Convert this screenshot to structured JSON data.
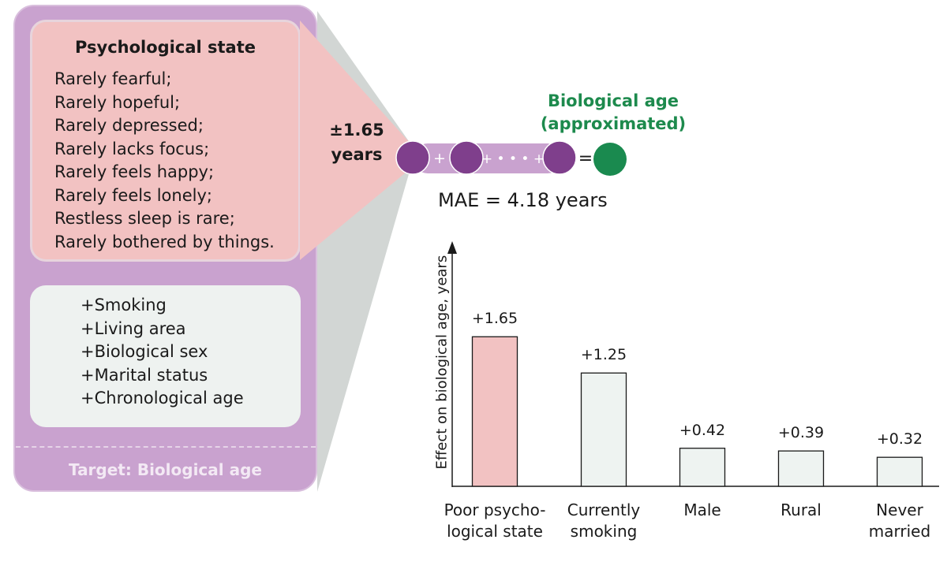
{
  "psych_box": {
    "title": "Psychological state",
    "items": [
      "Rarely fearful;",
      "Rarely hopeful;",
      "Rarely depressed;",
      "Rarely lacks focus;",
      "Rarely feels happy;",
      "Rarely feels lonely;",
      "Restless sleep is rare;",
      "Rarely bothered by things."
    ]
  },
  "covariates": [
    "+Smoking",
    "+Living area",
    "+Biological sex",
    "+Marital status",
    "+Chronological age"
  ],
  "target_label": "Target: Biological age",
  "effect": {
    "value": "±1.65",
    "unit": "years"
  },
  "formula": {
    "plus": "+",
    "dots": "+ • • • +",
    "equals": "="
  },
  "output_label": {
    "line1": "Biological age",
    "line2": "(approximated)"
  },
  "mae_text": "MAE = 4.18 years",
  "colors": {
    "panel": "#c9a2cf",
    "psych_fill": "#f2c2c2",
    "cov_fill": "#eef2f0",
    "circle_purple": "#7f3f8c",
    "circle_green": "#1a8a4f",
    "bar_highlight": "#f2c2c2",
    "bar_default": "#eef3f1",
    "green_text": "#1d8a4d"
  },
  "chart_data": {
    "type": "bar",
    "ylabel": "Effect on biological age, years",
    "xlabel": "",
    "categories": [
      [
        "Poor psycho-",
        "logical state"
      ],
      [
        "Currently",
        "smoking"
      ],
      [
        "Male"
      ],
      [
        "Rural"
      ],
      [
        "Never",
        "married"
      ]
    ],
    "values": [
      1.65,
      1.25,
      0.42,
      0.39,
      0.32
    ],
    "value_labels": [
      "+1.65",
      "+1.25",
      "+0.42",
      "+0.39",
      "+0.32"
    ],
    "highlight_index": 0,
    "ylim": [
      0,
      2.0
    ],
    "grid": false
  }
}
